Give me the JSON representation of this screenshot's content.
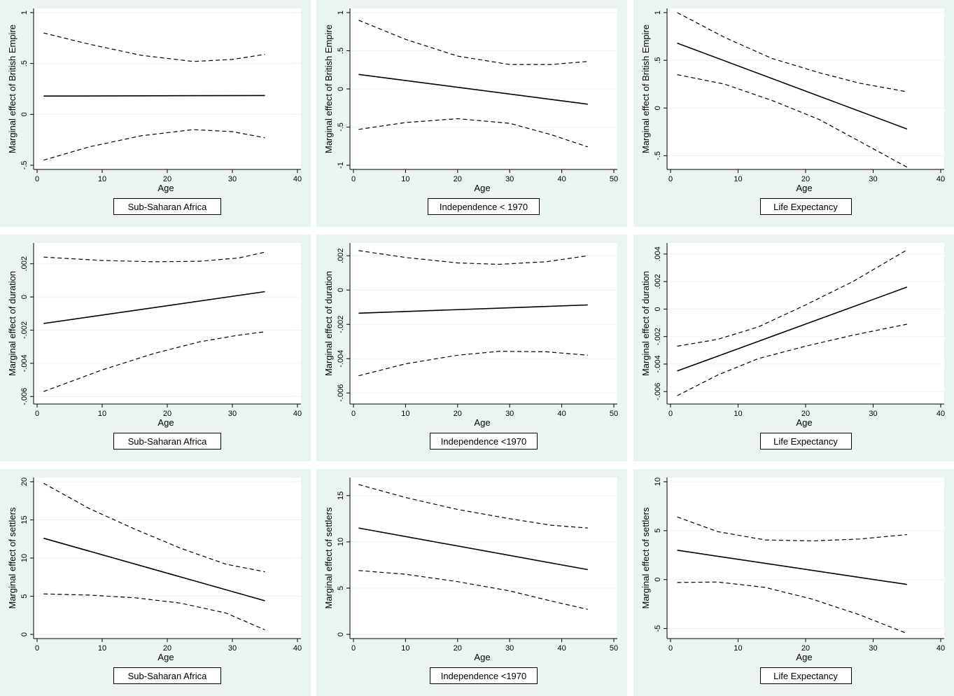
{
  "chart_data": [
    {
      "type": "line",
      "title": "",
      "caption": "Sub-Saharan Africa",
      "xlabel": "Age",
      "ylabel": "Marginal effect of British Empire",
      "xlim": [
        0,
        40
      ],
      "xticks": [
        0,
        10,
        20,
        30,
        40
      ],
      "xtick_labels": [
        "0",
        "10",
        "20",
        "30",
        "40"
      ],
      "ylim": [
        -0.5,
        1
      ],
      "yticks": [
        -0.5,
        0,
        0.5,
        1
      ],
      "ytick_labels": [
        "-.5",
        "0",
        ".5",
        "1"
      ],
      "series": [
        {
          "name": "upper CI",
          "style": "dashed",
          "x": [
            1,
            8,
            16,
            24,
            30,
            35
          ],
          "values": [
            0.8,
            0.69,
            0.58,
            0.52,
            0.54,
            0.59
          ]
        },
        {
          "name": "marginal effect",
          "style": "solid",
          "x": [
            1,
            35
          ],
          "values": [
            0.18,
            0.185
          ]
        },
        {
          "name": "lower CI",
          "style": "dashed",
          "x": [
            1,
            8,
            16,
            24,
            30,
            35
          ],
          "values": [
            -0.45,
            -0.32,
            -0.21,
            -0.15,
            -0.17,
            -0.23
          ]
        }
      ]
    },
    {
      "type": "line",
      "title": "",
      "caption": "Independence < 1970",
      "xlabel": "Age",
      "ylabel": "Marginal effect of British Empire",
      "xlim": [
        0,
        50
      ],
      "xticks": [
        0,
        10,
        20,
        30,
        40,
        50
      ],
      "xtick_labels": [
        "0",
        "10",
        "20",
        "30",
        "40",
        "50"
      ],
      "ylim": [
        -1,
        1
      ],
      "yticks": [
        -1,
        -0.5,
        0,
        0.5,
        1
      ],
      "ytick_labels": [
        "-1",
        "-.5",
        "0",
        ".5",
        "1"
      ],
      "series": [
        {
          "name": "upper CI",
          "style": "dashed",
          "x": [
            1,
            10,
            20,
            30,
            38,
            45
          ],
          "values": [
            0.9,
            0.65,
            0.43,
            0.32,
            0.32,
            0.36
          ]
        },
        {
          "name": "marginal effect",
          "style": "solid",
          "x": [
            1,
            45
          ],
          "values": [
            0.19,
            -0.2
          ]
        },
        {
          "name": "lower CI",
          "style": "dashed",
          "x": [
            1,
            10,
            20,
            30,
            38,
            45
          ],
          "values": [
            -0.53,
            -0.44,
            -0.39,
            -0.45,
            -0.6,
            -0.76
          ]
        }
      ]
    },
    {
      "type": "line",
      "title": "",
      "caption": "Life Expectancy",
      "xlabel": "Age",
      "ylabel": "Marginal effect of British Empire",
      "xlim": [
        0,
        40
      ],
      "xticks": [
        0,
        10,
        20,
        30,
        40
      ],
      "xtick_labels": [
        "0",
        "10",
        "20",
        "30",
        "40"
      ],
      "ylim": [
        -0.6,
        1
      ],
      "yticks": [
        -0.5,
        0,
        0.5,
        1
      ],
      "ytick_labels": [
        "-.5",
        "0",
        ".5",
        "1"
      ],
      "series": [
        {
          "name": "upper CI",
          "style": "dashed",
          "x": [
            1,
            8,
            15,
            22,
            28,
            35
          ],
          "values": [
            1.0,
            0.74,
            0.52,
            0.37,
            0.26,
            0.17
          ]
        },
        {
          "name": "marginal effect",
          "style": "solid",
          "x": [
            1,
            35
          ],
          "values": [
            0.68,
            -0.22
          ]
        },
        {
          "name": "lower CI",
          "style": "dashed",
          "x": [
            1,
            8,
            15,
            22,
            28,
            35
          ],
          "values": [
            0.35,
            0.25,
            0.08,
            -0.12,
            -0.35,
            -0.62
          ]
        }
      ]
    },
    {
      "type": "line",
      "title": "",
      "caption": "Sub-Saharan Africa",
      "xlabel": "Age",
      "ylabel": "Marginal effect of duration",
      "xlim": [
        0,
        40
      ],
      "xticks": [
        0,
        10,
        20,
        30,
        40
      ],
      "xtick_labels": [
        "0",
        "10",
        "20",
        "30",
        "40"
      ],
      "ylim": [
        -0.0062,
        0.003
      ],
      "yticks": [
        -0.006,
        -0.004,
        -0.002,
        0,
        0.002
      ],
      "ytick_labels": [
        "-.006",
        "-.004",
        "-.002",
        "0",
        ".002"
      ],
      "series": [
        {
          "name": "upper CI",
          "style": "dashed",
          "x": [
            1,
            10,
            18,
            25,
            31,
            35
          ],
          "values": [
            0.0024,
            0.0022,
            0.00212,
            0.00215,
            0.00235,
            0.0027
          ]
        },
        {
          "name": "marginal effect",
          "style": "solid",
          "x": [
            1,
            35
          ],
          "values": [
            -0.0016,
            0.00032
          ]
        },
        {
          "name": "lower CI",
          "style": "dashed",
          "x": [
            1,
            10,
            18,
            25,
            31,
            35
          ],
          "values": [
            -0.0057,
            -0.0044,
            -0.0034,
            -0.0027,
            -0.0023,
            -0.0021
          ]
        }
      ]
    },
    {
      "type": "line",
      "title": "",
      "caption": "Independence <1970",
      "xlabel": "Age",
      "ylabel": "Marginal effect of duration",
      "xlim": [
        0,
        50
      ],
      "xticks": [
        0,
        10,
        20,
        30,
        40,
        50
      ],
      "xtick_labels": [
        "0",
        "10",
        "20",
        "30",
        "40",
        "50"
      ],
      "ylim": [
        -0.0064,
        0.0025
      ],
      "yticks": [
        -0.006,
        -0.004,
        -0.002,
        0,
        0.002
      ],
      "ytick_labels": [
        "-.006",
        "-.004",
        "-.002",
        "0",
        ".002"
      ],
      "series": [
        {
          "name": "upper CI",
          "style": "dashed",
          "x": [
            1,
            10,
            20,
            28,
            37,
            45
          ],
          "values": [
            0.0023,
            0.0019,
            0.00158,
            0.0015,
            0.00165,
            0.002
          ]
        },
        {
          "name": "marginal effect",
          "style": "solid",
          "x": [
            1,
            45
          ],
          "values": [
            -0.00135,
            -0.00087
          ]
        },
        {
          "name": "lower CI",
          "style": "dashed",
          "x": [
            1,
            10,
            20,
            28,
            37,
            45
          ],
          "values": [
            -0.005,
            -0.0043,
            -0.0038,
            -0.00357,
            -0.0036,
            -0.0038
          ]
        }
      ]
    },
    {
      "type": "line",
      "title": "",
      "caption": "Life Expectancy",
      "xlabel": "Age",
      "ylabel": "Marginal effect of duration",
      "xlim": [
        0,
        40
      ],
      "xticks": [
        0,
        10,
        20,
        30,
        40
      ],
      "xtick_labels": [
        "0",
        "10",
        "20",
        "30",
        "40"
      ],
      "ylim": [
        -0.0066,
        0.0045
      ],
      "yticks": [
        -0.006,
        -0.004,
        -0.002,
        0,
        0.002,
        0.004
      ],
      "ytick_labels": [
        "-.006",
        "-.004",
        "-.002",
        "0",
        ".002",
        ".004"
      ],
      "series": [
        {
          "name": "upper CI",
          "style": "dashed",
          "x": [
            1,
            7,
            13,
            20,
            27,
            35
          ],
          "values": [
            -0.0027,
            -0.0022,
            -0.0013,
            0.0003,
            0.002,
            0.0043
          ]
        },
        {
          "name": "marginal effect",
          "style": "solid",
          "x": [
            1,
            35
          ],
          "values": [
            -0.0045,
            0.0016
          ]
        },
        {
          "name": "lower CI",
          "style": "dashed",
          "x": [
            1,
            7,
            13,
            20,
            27,
            35
          ],
          "values": [
            -0.0063,
            -0.0048,
            -0.0036,
            -0.0027,
            -0.0019,
            -0.0011
          ]
        }
      ]
    },
    {
      "type": "line",
      "title": "",
      "caption": "Sub-Saharan Africa",
      "xlabel": "Age",
      "ylabel": "Marginal effect of settlers",
      "xlim": [
        0,
        40
      ],
      "xticks": [
        0,
        10,
        20,
        30,
        40
      ],
      "xtick_labels": [
        "0",
        "10",
        "20",
        "30",
        "40"
      ],
      "ylim": [
        0,
        20
      ],
      "yticks": [
        0,
        5,
        10,
        15,
        20
      ],
      "ytick_labels": [
        "0",
        "5",
        "10",
        "15",
        "20"
      ],
      "series": [
        {
          "name": "upper CI",
          "style": "dashed",
          "x": [
            1,
            8,
            15,
            22,
            29,
            35
          ],
          "values": [
            19.8,
            16.5,
            13.8,
            11.3,
            9.2,
            8.2
          ]
        },
        {
          "name": "marginal effect",
          "style": "solid",
          "x": [
            1,
            35
          ],
          "values": [
            12.6,
            4.4
          ]
        },
        {
          "name": "lower CI",
          "style": "dashed",
          "x": [
            1,
            8,
            15,
            22,
            29,
            35
          ],
          "values": [
            5.3,
            5.15,
            4.8,
            4.1,
            2.8,
            0.6
          ]
        }
      ]
    },
    {
      "type": "line",
      "title": "",
      "caption": "Independence <1970",
      "xlabel": "Age",
      "ylabel": "Marginal effect of settlers",
      "xlim": [
        0,
        50
      ],
      "xticks": [
        0,
        10,
        20,
        30,
        40,
        50
      ],
      "xtick_labels": [
        "0",
        "10",
        "20",
        "30",
        "40",
        "50"
      ],
      "ylim": [
        0,
        16.5
      ],
      "yticks": [
        0,
        5,
        10,
        15
      ],
      "ytick_labels": [
        "0",
        "5",
        "10",
        "15"
      ],
      "series": [
        {
          "name": "upper CI",
          "style": "dashed",
          "x": [
            1,
            10,
            20,
            30,
            38,
            45
          ],
          "values": [
            16.2,
            14.8,
            13.5,
            12.5,
            11.8,
            11.5
          ]
        },
        {
          "name": "marginal effect",
          "style": "solid",
          "x": [
            1,
            45
          ],
          "values": [
            11.5,
            7.0
          ]
        },
        {
          "name": "lower CI",
          "style": "dashed",
          "x": [
            1,
            10,
            20,
            30,
            38,
            45
          ],
          "values": [
            6.9,
            6.5,
            5.7,
            4.7,
            3.6,
            2.7
          ]
        }
      ]
    },
    {
      "type": "line",
      "title": "",
      "caption": "Life Expectancy",
      "xlabel": "Age",
      "ylabel": "Marginal effect of settlers",
      "xlim": [
        0,
        40
      ],
      "xticks": [
        0,
        10,
        20,
        30,
        40
      ],
      "xtick_labels": [
        "0",
        "10",
        "20",
        "30",
        "40"
      ],
      "ylim": [
        -5.6,
        10
      ],
      "yticks": [
        -5,
        0,
        5,
        10
      ],
      "ytick_labels": [
        "-5",
        "0",
        "5",
        "10"
      ],
      "series": [
        {
          "name": "upper CI",
          "style": "dashed",
          "x": [
            1,
            7,
            14,
            21,
            28,
            35
          ],
          "values": [
            6.4,
            4.9,
            4.05,
            3.95,
            4.15,
            4.6
          ]
        },
        {
          "name": "marginal effect",
          "style": "solid",
          "x": [
            1,
            35
          ],
          "values": [
            3.0,
            -0.5
          ]
        },
        {
          "name": "lower CI",
          "style": "dashed",
          "x": [
            1,
            7,
            14,
            21,
            28,
            35
          ],
          "values": [
            -0.3,
            -0.25,
            -0.8,
            -2.0,
            -3.6,
            -5.5
          ]
        }
      ]
    }
  ]
}
